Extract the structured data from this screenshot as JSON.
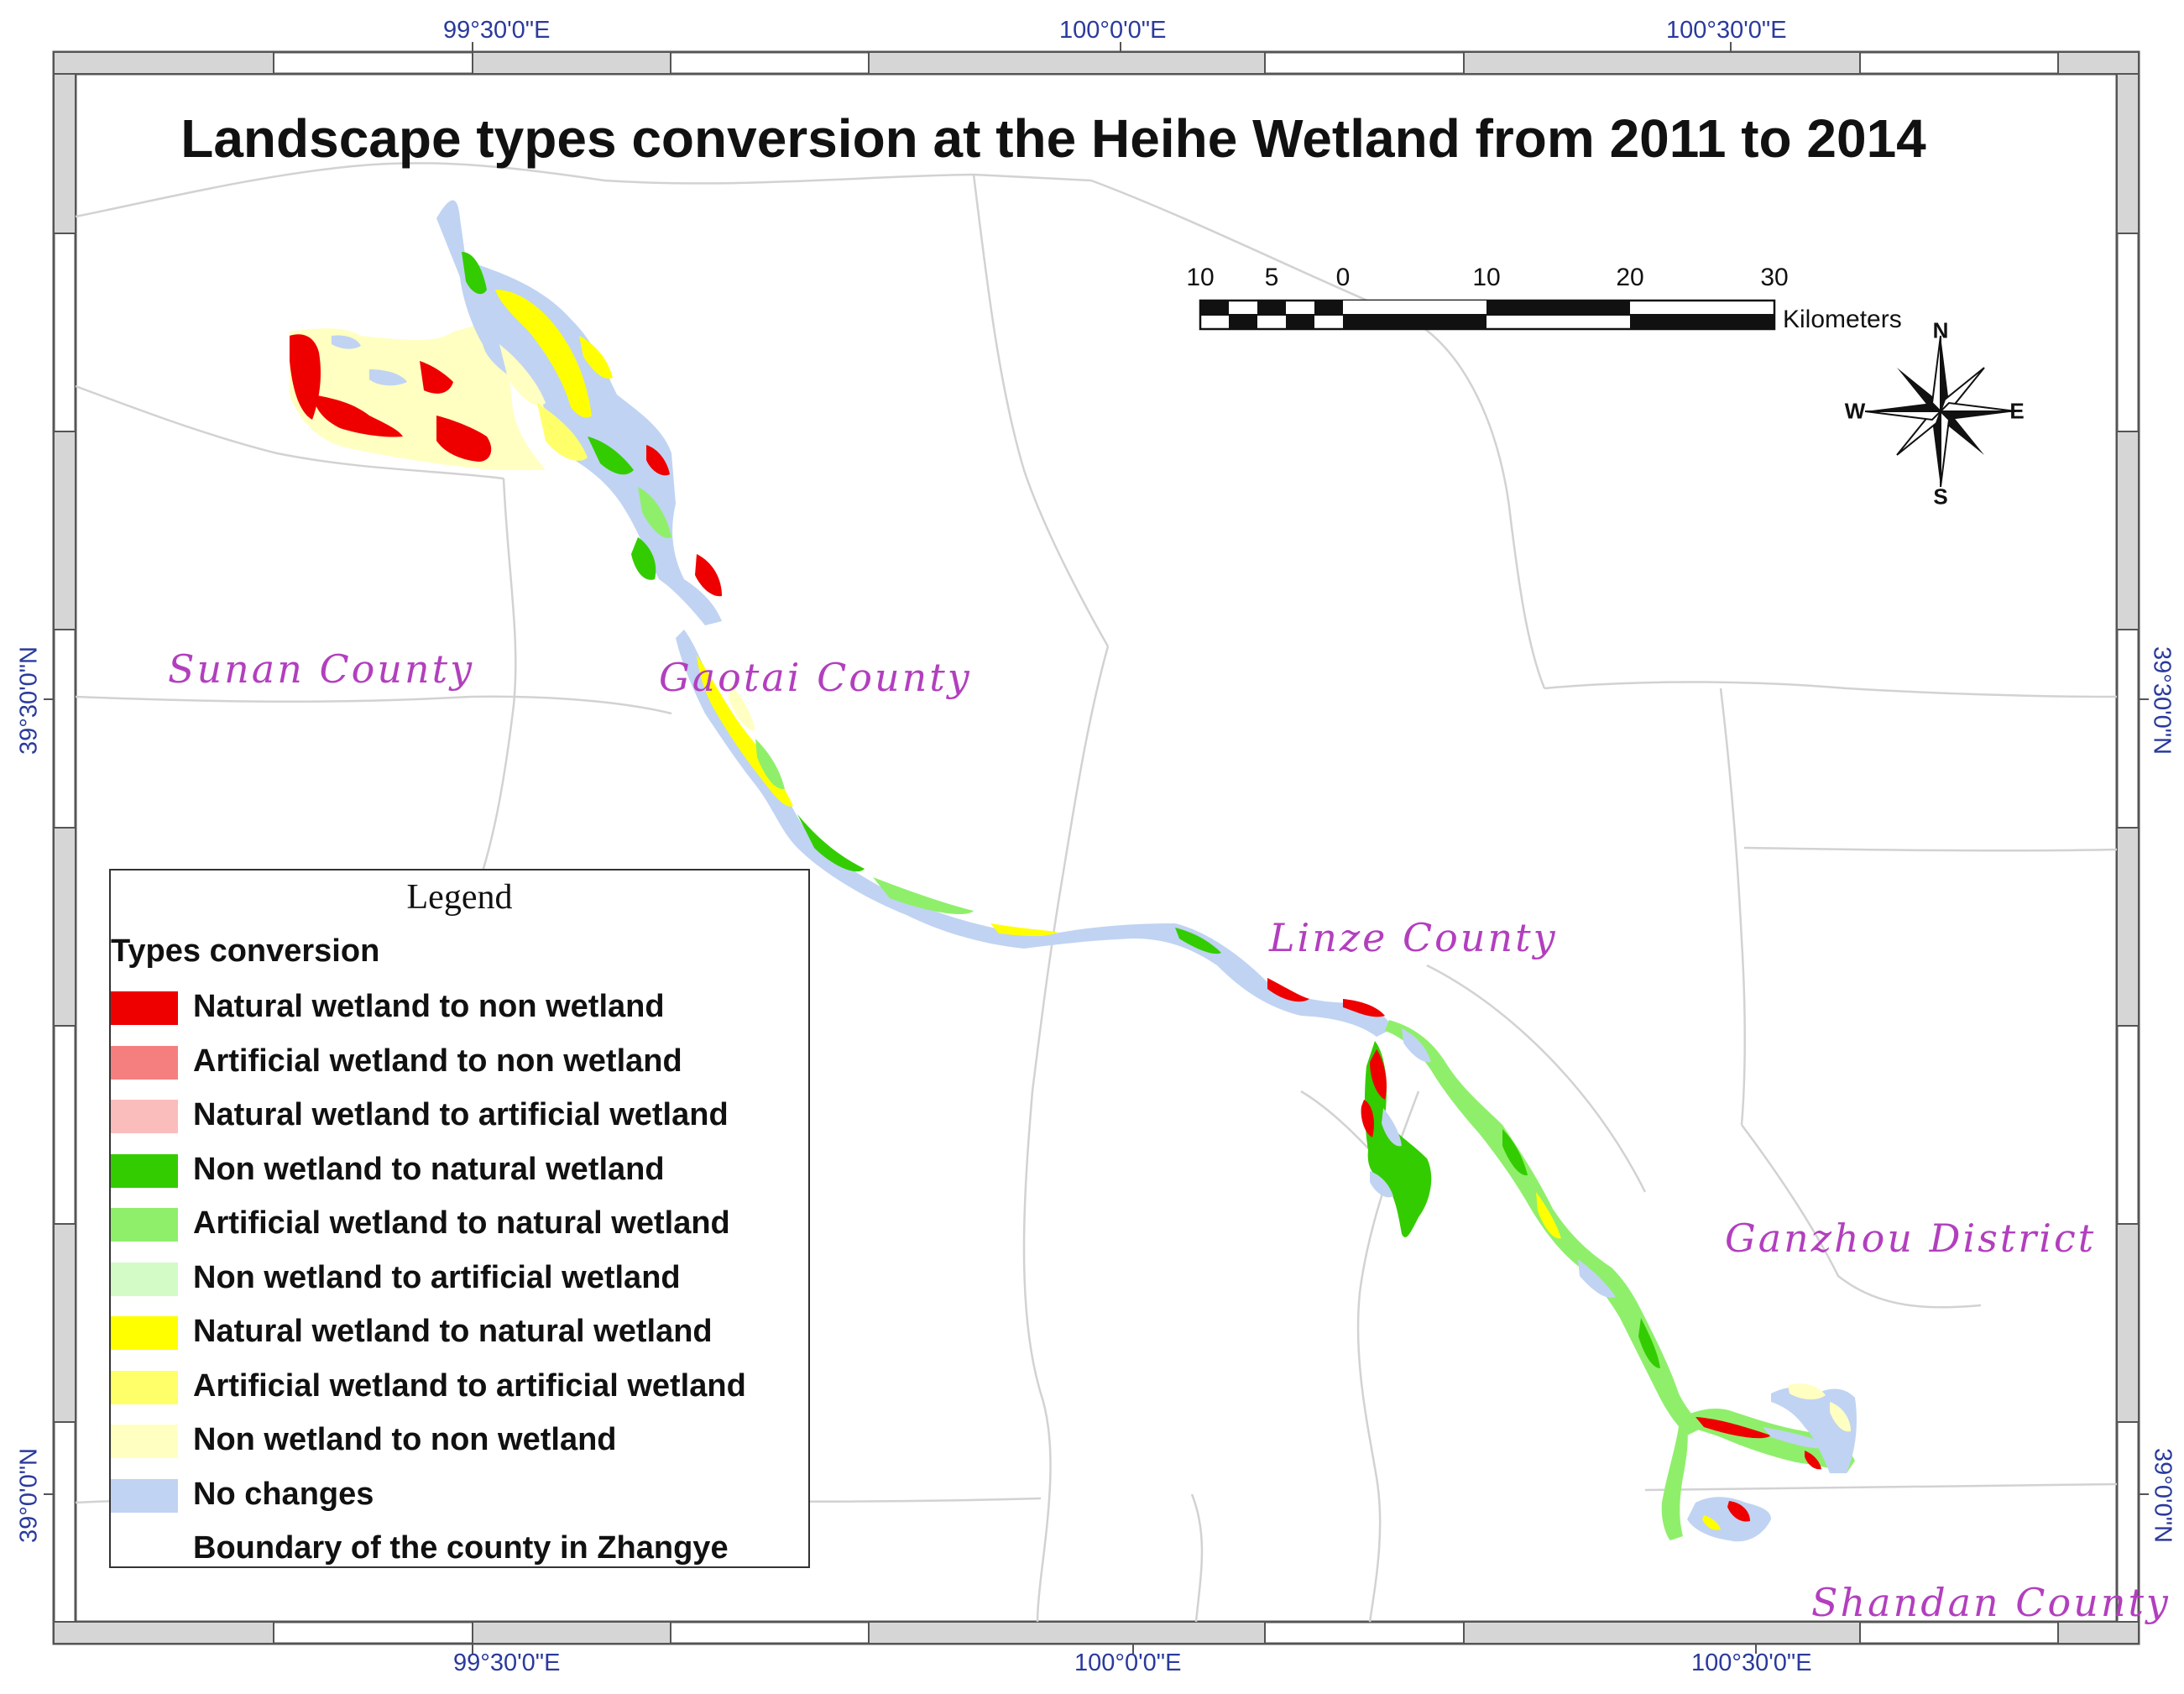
{
  "title": "Landscape types conversion at the Heihe Wetland from 2011 to 2014",
  "coordinates": {
    "top": [
      "99°30'0\"E",
      "100°0'0\"E",
      "100°30'0\"E"
    ],
    "bottom": [
      "99°30'0\"E",
      "100°0'0\"E",
      "100°30'0\"E"
    ],
    "left": [
      "39°30'0\"N",
      "39°0'0\"N"
    ],
    "right": [
      "39°30'0\"N",
      "39°0'0\"N"
    ]
  },
  "places": {
    "sunan": "Sunan County",
    "gaotai": "Gaotai County",
    "linze": "Linze County",
    "ganzhou": "Ganzhou District",
    "shandan": "Shandan County"
  },
  "scale_bar": {
    "labels": [
      "10",
      "5",
      "0",
      "10",
      "20",
      "30"
    ],
    "unit": "Kilometers"
  },
  "compass": {
    "n": "N",
    "s": "S",
    "e": "E",
    "w": "W"
  },
  "legend": {
    "title": "Legend",
    "subtitle": "Types conversion",
    "items": [
      {
        "label": "Natural wetland to non wetland",
        "color": "#ee0000"
      },
      {
        "label": "Artificial wetland to non wetland",
        "color": "#f57f7f"
      },
      {
        "label": "Natural wetland to artificial wetland",
        "color": "#fbbcbc"
      },
      {
        "label": "Non wetland to natural wetland",
        "color": "#33cc00"
      },
      {
        "label": "Artificial wetland to natural wetland",
        "color": "#8fef6b"
      },
      {
        "label": "Non wetland to artificial wetland",
        "color": "#d3fbc6"
      },
      {
        "label": "Natural wetland to natural wetland",
        "color": "#ffff00"
      },
      {
        "label": "Artificial wetland to artificial wetland",
        "color": "#ffff6a"
      },
      {
        "label": "Non wetland to non wetland",
        "color": "#ffffc2"
      },
      {
        "label": "No changes",
        "color": "#c0d3f2"
      },
      {
        "label": "Boundary of the county in Zhangye",
        "color": "#ffffff"
      }
    ]
  }
}
